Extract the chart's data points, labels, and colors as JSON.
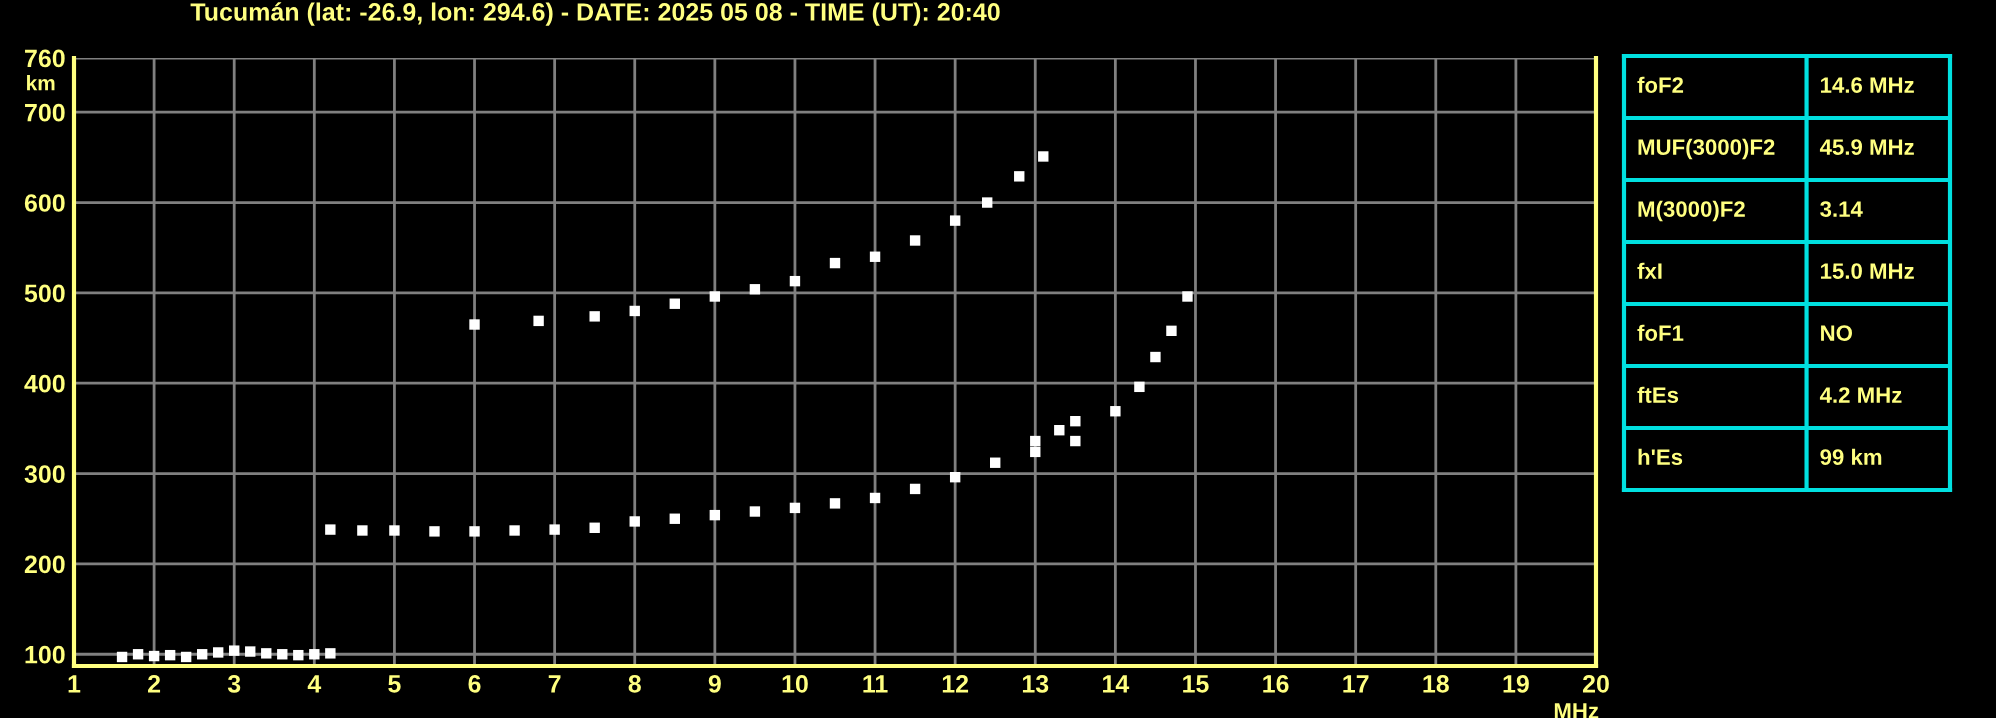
{
  "chart_data": [
    {
      "type": "scatter",
      "title": "Tucumán (lat: -26.9, lon: 294.6) - DATE: 2025 05 08 - TIME (UT): 20:40",
      "xlabel": "MHz",
      "ylabel": "km",
      "xlim": [
        1,
        20
      ],
      "ylim": [
        87,
        760
      ],
      "xticks": [
        1,
        2,
        3,
        4,
        5,
        6,
        7,
        8,
        9,
        10,
        11,
        12,
        13,
        14,
        15,
        16,
        17,
        18,
        19,
        20
      ],
      "yticks": [
        100,
        200,
        300,
        400,
        500,
        600,
        700,
        760
      ],
      "grid": true,
      "marker": "square",
      "legend": false,
      "series": [
        {
          "color": "#ffffff",
          "x": [
            1.6,
            1.8,
            2.0,
            2.2,
            2.4,
            2.6,
            2.8,
            3.0,
            3.2,
            3.4,
            3.6,
            3.8,
            4.0,
            4.2
          ],
          "values": [
            97,
            100,
            98,
            99,
            97,
            100,
            102,
            104,
            103,
            101,
            100,
            99,
            100,
            101
          ]
        },
        {
          "color": "#ffffff",
          "x": [
            4.2,
            4.6,
            5.0,
            5.5,
            6.0,
            6.5,
            7.0,
            7.5,
            8.0,
            8.5,
            9.0,
            9.5,
            10.0,
            10.5,
            11.0,
            11.5,
            12.0,
            12.5,
            13.0,
            13.3,
            13.5
          ],
          "values": [
            238,
            237,
            237,
            236,
            236,
            237,
            238,
            240,
            247,
            250,
            254,
            258,
            262,
            267,
            273,
            283,
            296,
            312,
            336,
            348,
            358
          ]
        },
        {
          "color": "#ffffff",
          "x": [
            13.0,
            13.5,
            14.0,
            14.3,
            14.5,
            14.7,
            14.9
          ],
          "values": [
            324,
            336,
            369,
            396,
            429,
            458,
            496
          ]
        },
        {
          "color": "#ffffff",
          "x": [
            6.0,
            6.8,
            7.5,
            8.0,
            8.5,
            9.0,
            9.5,
            10.0,
            10.5,
            11.0,
            11.5,
            12.0,
            12.4,
            12.8,
            13.1
          ],
          "values": [
            465,
            469,
            474,
            480,
            488,
            496,
            504,
            513,
            533,
            540,
            558,
            580,
            600,
            629,
            651
          ]
        }
      ]
    },
    {
      "type": "other",
      "annotations": [
        "foF2",
        "14.6 MHz",
        "MUF(3000)F2",
        "45.9 MHz",
        "M(3000)F2",
        "3.14",
        "fxI",
        "15.0 MHz",
        "foF1",
        "NO",
        "ftEs",
        "4.2 MHz",
        "h'Es",
        "99 km"
      ]
    }
  ]
}
